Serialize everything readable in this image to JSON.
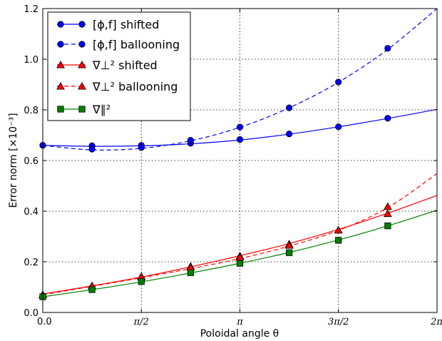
{
  "chart_data": {
    "type": "line",
    "title": "",
    "xlabel": "Poloidal angle θ",
    "ylabel": "Error norm [×10⁻³]",
    "xlim": [
      0,
      6.283185307
    ],
    "ylim": [
      0.0,
      1.2
    ],
    "grid": true,
    "legend_position": "top-left",
    "x_ticks": [
      {
        "value": 0,
        "label": "0.0"
      },
      {
        "value": 1.5707963,
        "label": "π/2"
      },
      {
        "value": 3.1415927,
        "label": "π"
      },
      {
        "value": 4.712389,
        "label": "3π/2"
      },
      {
        "value": 6.2831853,
        "label": "2π"
      }
    ],
    "y_ticks": [
      {
        "value": 0.0,
        "label": "0.0"
      },
      {
        "value": 0.2,
        "label": "0.2"
      },
      {
        "value": 0.4,
        "label": "0.4"
      },
      {
        "value": 0.6,
        "label": "0.6"
      },
      {
        "value": 0.8,
        "label": "0.8"
      },
      {
        "value": 1.0,
        "label": "1.0"
      },
      {
        "value": 1.2,
        "label": "1.2"
      }
    ],
    "series": [
      {
        "name": "[ϕ,f] shifted",
        "color": "#0000ff",
        "marker": "circle",
        "dash": "solid",
        "points": [
          [
            0.0,
            0.66
          ],
          [
            0.785,
            0.658
          ],
          [
            1.571,
            0.66
          ],
          [
            2.356,
            0.668
          ],
          [
            3.142,
            0.683
          ],
          [
            3.927,
            0.705
          ],
          [
            4.712,
            0.733
          ],
          [
            5.498,
            0.767
          ]
        ],
        "curve": [
          [
            0.0,
            0.66
          ],
          [
            0.785,
            0.656
          ],
          [
            1.571,
            0.658
          ],
          [
            2.356,
            0.666
          ],
          [
            3.142,
            0.681
          ],
          [
            3.927,
            0.704
          ],
          [
            4.712,
            0.733
          ],
          [
            5.498,
            0.766
          ],
          [
            6.283,
            0.802
          ]
        ]
      },
      {
        "name": "[ϕ,f] ballooning",
        "color": "#0000ff",
        "marker": "circle",
        "dash": "dashed",
        "points": [
          [
            0.0,
            0.66
          ],
          [
            0.785,
            0.645
          ],
          [
            1.571,
            0.651
          ],
          [
            2.356,
            0.68
          ],
          [
            3.142,
            0.732
          ],
          [
            3.927,
            0.808
          ],
          [
            4.712,
            0.91
          ],
          [
            5.498,
            1.043
          ]
        ],
        "curve": [
          [
            0.0,
            0.66
          ],
          [
            0.785,
            0.642
          ],
          [
            1.571,
            0.648
          ],
          [
            2.356,
            0.678
          ],
          [
            3.142,
            0.731
          ],
          [
            3.927,
            0.808
          ],
          [
            4.712,
            0.909
          ],
          [
            5.498,
            1.039
          ],
          [
            6.283,
            1.2
          ]
        ]
      },
      {
        "name": "∇⊥² shifted",
        "color": "#ff0000",
        "marker": "triangle",
        "dash": "solid",
        "points": [
          [
            0.0,
            0.07
          ],
          [
            0.785,
            0.105
          ],
          [
            1.571,
            0.142
          ],
          [
            2.356,
            0.182
          ],
          [
            3.142,
            0.223
          ],
          [
            3.927,
            0.27
          ],
          [
            4.712,
            0.325
          ],
          [
            5.498,
            0.39
          ]
        ],
        "curve": [
          [
            0.0,
            0.073
          ],
          [
            0.785,
            0.105
          ],
          [
            1.571,
            0.14
          ],
          [
            2.356,
            0.18
          ],
          [
            3.142,
            0.224
          ],
          [
            3.927,
            0.272
          ],
          [
            4.712,
            0.328
          ],
          [
            5.498,
            0.392
          ],
          [
            6.283,
            0.462
          ]
        ]
      },
      {
        "name": "∇⊥² ballooning",
        "color": "#ff0000",
        "marker": "triangle",
        "dash": "dashed",
        "points": [
          [
            0.0,
            0.07
          ],
          [
            0.785,
            0.104
          ],
          [
            1.571,
            0.14
          ],
          [
            2.356,
            0.178
          ],
          [
            3.142,
            0.218
          ],
          [
            3.927,
            0.265
          ],
          [
            4.712,
            0.325
          ],
          [
            5.498,
            0.418
          ]
        ],
        "curve": [
          [
            0.0,
            0.07
          ],
          [
            0.785,
            0.103
          ],
          [
            1.571,
            0.137
          ],
          [
            2.356,
            0.173
          ],
          [
            3.142,
            0.213
          ],
          [
            3.927,
            0.262
          ],
          [
            4.712,
            0.324
          ],
          [
            5.498,
            0.414
          ],
          [
            6.283,
            0.548
          ]
        ]
      },
      {
        "name": "∇∥²",
        "color": "#008000",
        "marker": "square",
        "dash": "solid",
        "points": [
          [
            0.0,
            0.062
          ],
          [
            0.785,
            0.09
          ],
          [
            1.571,
            0.122
          ],
          [
            2.356,
            0.157
          ],
          [
            3.142,
            0.194
          ],
          [
            3.927,
            0.236
          ],
          [
            4.712,
            0.285
          ],
          [
            5.498,
            0.342
          ]
        ],
        "curve": [
          [
            0.0,
            0.062
          ],
          [
            0.785,
            0.09
          ],
          [
            1.571,
            0.121
          ],
          [
            2.356,
            0.156
          ],
          [
            3.142,
            0.194
          ],
          [
            3.927,
            0.237
          ],
          [
            4.712,
            0.286
          ],
          [
            5.498,
            0.342
          ],
          [
            6.283,
            0.404
          ]
        ]
      }
    ]
  }
}
